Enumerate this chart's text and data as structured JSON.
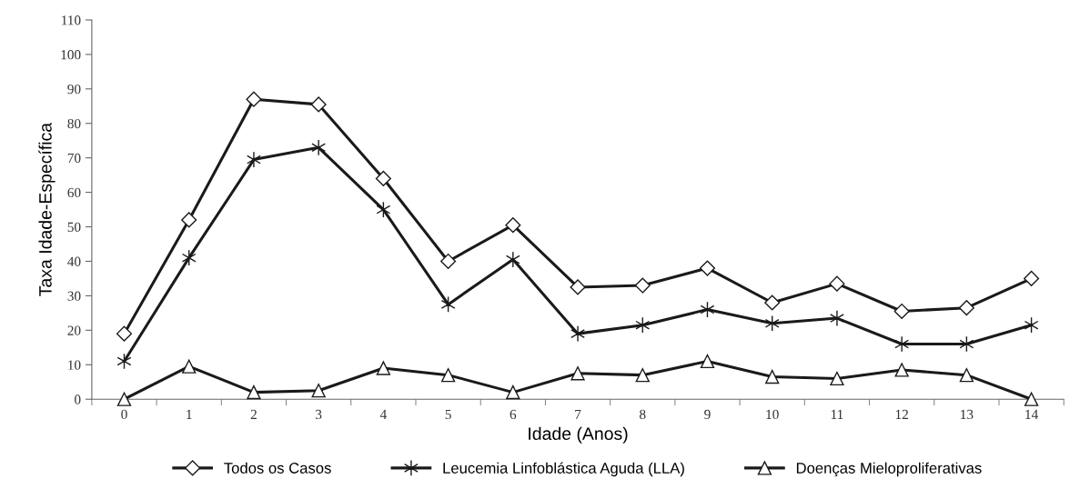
{
  "chart_data": {
    "type": "line",
    "xlabel": "Idade (Anos)",
    "ylabel": "Taxa Idade-Específica",
    "categories": [
      "0",
      "1",
      "2",
      "3",
      "4",
      "5",
      "6",
      "7",
      "8",
      "9",
      "10",
      "11",
      "12",
      "13",
      "14"
    ],
    "series": [
      {
        "name": "Todos os Casos",
        "color": "#1a1a1a",
        "marker": "diamond",
        "values": [
          19,
          52,
          87,
          85.5,
          64,
          40,
          50.5,
          32.5,
          33,
          38,
          28,
          33.5,
          25.5,
          26.5,
          35
        ]
      },
      {
        "name": "Leucemia Linfoblástica Aguda (LLA)",
        "color": "#1a1a1a",
        "marker": "cross",
        "values": [
          11,
          41,
          69.5,
          73,
          55,
          27.5,
          40.5,
          19,
          21.5,
          26,
          22,
          23.5,
          16,
          16,
          21.5
        ]
      },
      {
        "name": "Doenças Mieloproliferativas",
        "color": "#1a1a1a",
        "marker": "triangle",
        "values": [
          0,
          9.5,
          2,
          2.5,
          9,
          7,
          2,
          7.5,
          7,
          11,
          6.5,
          6,
          8.5,
          7,
          0
        ]
      }
    ],
    "ylim": [
      0,
      110
    ],
    "yticks": [
      0,
      10,
      20,
      30,
      40,
      50,
      60,
      70,
      80,
      90,
      100,
      110
    ],
    "grid": false,
    "legend": "bottom",
    "line_style": "solid"
  }
}
